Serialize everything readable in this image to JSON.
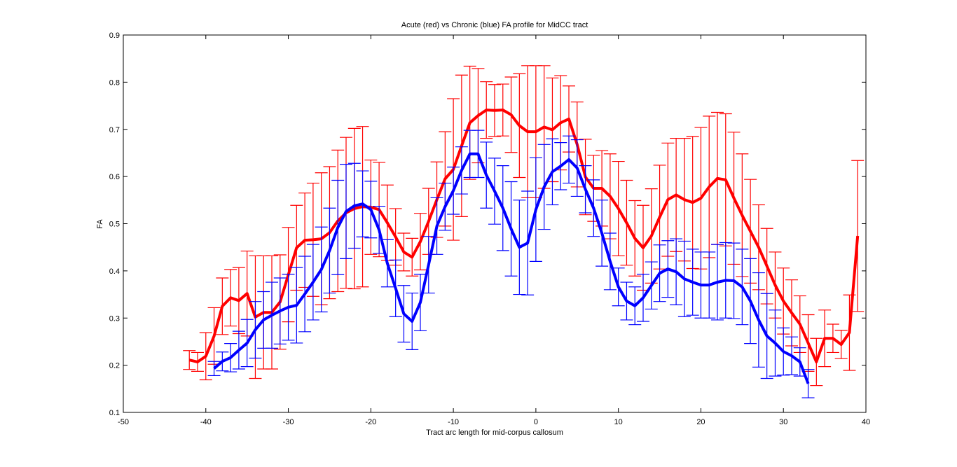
{
  "chart_data": {
    "type": "line",
    "title": "Acute (red) vs Chronic (blue) FA profile for MidCC tract",
    "xlabel": "Tract arc length for mid-corpus callosum",
    "ylabel": "FA",
    "xlim": [
      -50,
      40
    ],
    "ylim": [
      0.1,
      0.9
    ],
    "xticks": [
      -50,
      -40,
      -30,
      -20,
      -10,
      0,
      10,
      20,
      30,
      40
    ],
    "yticks": [
      0.1,
      0.2,
      0.3,
      0.4,
      0.5,
      0.6,
      0.7,
      0.8,
      0.9
    ],
    "grid": false,
    "error_bars": true,
    "series": [
      {
        "name": "Acute",
        "color": "#ff0000",
        "x_start": -42,
        "values": [
          0.211,
          0.207,
          0.219,
          0.262,
          0.325,
          0.343,
          0.337,
          0.352,
          0.302,
          0.312,
          0.312,
          0.334,
          0.392,
          0.449,
          0.465,
          0.466,
          0.468,
          0.481,
          0.506,
          0.523,
          0.532,
          0.536,
          0.535,
          0.53,
          0.502,
          0.472,
          0.44,
          0.429,
          0.462,
          0.505,
          0.551,
          0.595,
          0.615,
          0.665,
          0.714,
          0.729,
          0.741,
          0.74,
          0.741,
          0.731,
          0.708,
          0.695,
          0.695,
          0.705,
          0.699,
          0.714,
          0.722,
          0.668,
          0.599,
          0.575,
          0.575,
          0.558,
          0.532,
          0.502,
          0.469,
          0.449,
          0.474,
          0.514,
          0.551,
          0.561,
          0.551,
          0.545,
          0.554,
          0.578,
          0.596,
          0.593,
          0.554,
          0.518,
          0.484,
          0.45,
          0.41,
          0.37,
          0.336,
          0.311,
          0.287,
          0.247,
          0.207,
          0.257,
          0.257,
          0.244,
          0.269,
          0.474
        ],
        "errors": [
          0.02,
          0.02,
          0.05,
          0.06,
          0.06,
          0.06,
          0.07,
          0.09,
          0.13,
          0.12,
          0.12,
          0.1,
          0.1,
          0.09,
          0.1,
          0.12,
          0.14,
          0.14,
          0.15,
          0.16,
          0.17,
          0.17,
          0.1,
          0.1,
          0.08,
          0.06,
          0.04,
          0.04,
          0.06,
          0.07,
          0.08,
          0.1,
          0.15,
          0.15,
          0.12,
          0.1,
          0.06,
          0.055,
          0.055,
          0.08,
          0.11,
          0.14,
          0.14,
          0.13,
          0.11,
          0.1,
          0.07,
          0.09,
          0.08,
          0.07,
          0.08,
          0.09,
          0.1,
          0.09,
          0.08,
          0.09,
          0.1,
          0.11,
          0.12,
          0.12,
          0.13,
          0.14,
          0.15,
          0.15,
          0.14,
          0.14,
          0.14,
          0.13,
          0.11,
          0.09,
          0.08,
          0.07,
          0.07,
          0.07,
          0.06,
          0.06,
          0.05,
          0.06,
          0.03,
          0.03,
          0.08,
          0.16
        ]
      },
      {
        "name": "Chronic",
        "color": "#0000ff",
        "x_start": -39,
        "values": [
          0.193,
          0.208,
          0.216,
          0.232,
          0.247,
          0.275,
          0.296,
          0.306,
          0.315,
          0.323,
          0.327,
          0.351,
          0.376,
          0.403,
          0.443,
          0.492,
          0.526,
          0.538,
          0.542,
          0.53,
          0.487,
          0.416,
          0.363,
          0.309,
          0.293,
          0.333,
          0.413,
          0.495,
          0.536,
          0.57,
          0.613,
          0.648,
          0.648,
          0.603,
          0.569,
          0.533,
          0.489,
          0.45,
          0.459,
          0.53,
          0.578,
          0.61,
          0.622,
          0.636,
          0.618,
          0.573,
          0.533,
          0.48,
          0.42,
          0.366,
          0.336,
          0.326,
          0.343,
          0.369,
          0.395,
          0.404,
          0.398,
          0.383,
          0.376,
          0.37,
          0.37,
          0.376,
          0.38,
          0.379,
          0.366,
          0.336,
          0.296,
          0.262,
          0.247,
          0.229,
          0.22,
          0.207,
          0.161
        ],
        "errors": [
          0.015,
          0.02,
          0.03,
          0.04,
          0.05,
          0.06,
          0.06,
          0.07,
          0.07,
          0.07,
          0.08,
          0.08,
          0.08,
          0.09,
          0.09,
          0.1,
          0.1,
          0.09,
          0.07,
          0.06,
          0.05,
          0.05,
          0.06,
          0.06,
          0.06,
          0.06,
          0.06,
          0.06,
          0.05,
          0.05,
          0.05,
          0.05,
          0.05,
          0.07,
          0.07,
          0.09,
          0.1,
          0.1,
          0.11,
          0.11,
          0.09,
          0.07,
          0.05,
          0.05,
          0.06,
          0.05,
          0.06,
          0.07,
          0.06,
          0.04,
          0.04,
          0.04,
          0.05,
          0.05,
          0.06,
          0.06,
          0.07,
          0.08,
          0.07,
          0.07,
          0.07,
          0.08,
          0.08,
          0.08,
          0.08,
          0.09,
          0.1,
          0.09,
          0.07,
          0.05,
          0.04,
          0.03,
          0.03
        ]
      }
    ]
  }
}
